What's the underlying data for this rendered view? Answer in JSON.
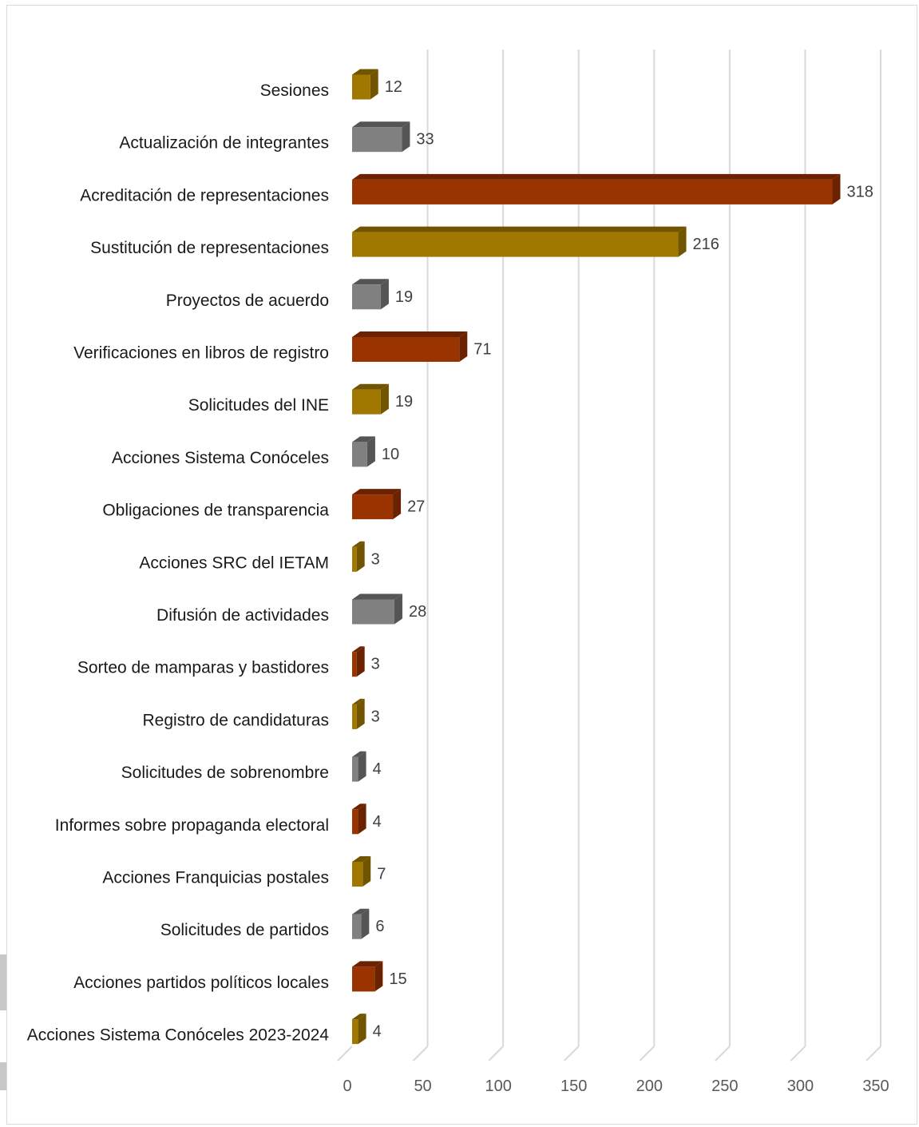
{
  "chart_data": {
    "type": "bar",
    "orientation": "horizontal",
    "style": "3d",
    "title": "",
    "xlabel": "",
    "ylabel": "",
    "xlim": [
      0,
      350
    ],
    "x_ticks": [
      0,
      50,
      100,
      150,
      200,
      250,
      300,
      350
    ],
    "grid": true,
    "legend": "none",
    "categories": [
      "Sesiones",
      "Actualización de integrantes",
      "Acreditación de representaciones",
      "Sustitución de representaciones",
      "Proyectos de acuerdo",
      "Verificaciones en libros de registro",
      "Solicitudes del INE",
      "Acciones Sistema Conóceles",
      "Obligaciones de transparencia",
      "Acciones SRC del IETAM",
      "Difusión de actividades",
      "Sorteo de mamparas y bastidores",
      "Registro de candidaturas",
      "Solicitudes de sobrenombre",
      "Informes sobre propaganda electoral",
      "Acciones Franquicias postales",
      "Solicitudes de partidos",
      "Acciones partidos políticos locales",
      "Acciones Sistema Conóceles 2023-2024"
    ],
    "values": [
      12,
      33,
      318,
      216,
      19,
      71,
      19,
      10,
      27,
      3,
      28,
      3,
      3,
      4,
      4,
      7,
      6,
      15,
      4
    ],
    "bar_colors": [
      "#a07800",
      "#808080",
      "#993300"
    ],
    "bar_side_colors": [
      "#705400",
      "#555555",
      "#6b2200"
    ]
  }
}
